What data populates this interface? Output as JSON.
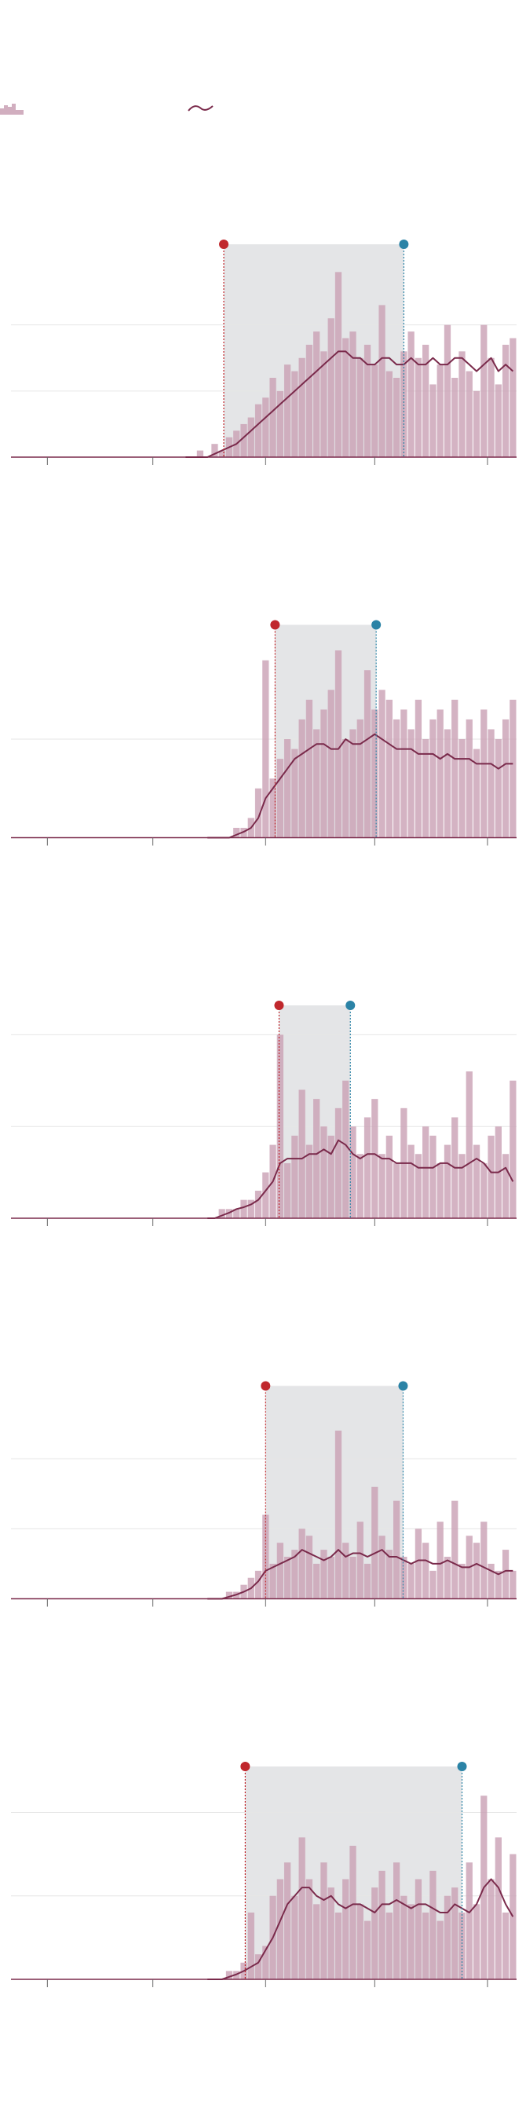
{
  "chart_data": [
    {
      "type": "combo",
      "xlim": [
        0,
        139
      ],
      "xticks": [
        10,
        39,
        70,
        100,
        131
      ],
      "ylim": [
        0,
        32.2
      ],
      "yticks": [
        10,
        20
      ],
      "grid": true,
      "highlight": {
        "start": 58.5,
        "end": 108,
        "start_color": "#c0282d",
        "end_color": "#2b83a6",
        "fill": "#e4e5e7"
      },
      "x": [
        48,
        50,
        52,
        54,
        56,
        58,
        60,
        62,
        64,
        66,
        68,
        70,
        72,
        74,
        76,
        78,
        80,
        82,
        84,
        86,
        88,
        90,
        92,
        94,
        96,
        98,
        100,
        102,
        104,
        106,
        108,
        110,
        112,
        114,
        116,
        118,
        120,
        122,
        124,
        126,
        128,
        130,
        132,
        134,
        136,
        138
      ],
      "series": [
        {
          "type": "bar",
          "color": "#c9a0b4",
          "values": [
            0,
            0,
            1,
            0,
            2,
            1,
            3,
            4,
            5,
            6,
            8,
            9,
            12,
            10,
            14,
            13,
            15,
            17,
            19,
            16,
            21,
            28,
            18,
            19,
            15,
            17,
            14,
            23,
            13,
            12,
            16,
            19,
            15,
            17,
            11,
            14,
            20,
            12,
            16,
            13,
            10,
            20,
            15,
            11,
            17,
            18
          ]
        },
        {
          "type": "line",
          "color": "#7a2a4b",
          "values": [
            0,
            0,
            0,
            0,
            0.5,
            1,
            1.5,
            2,
            3,
            4,
            5,
            6,
            7,
            8,
            9,
            10,
            11,
            12,
            13,
            14,
            15,
            16,
            16,
            15,
            15,
            14,
            14,
            15,
            15,
            14,
            14,
            15,
            14,
            14,
            15,
            14,
            14,
            15,
            15,
            14,
            13,
            14,
            15,
            13,
            14,
            13
          ]
        }
      ]
    },
    {
      "type": "combo",
      "xlim": [
        0,
        139
      ],
      "xticks": [
        10,
        39,
        70,
        100,
        131
      ],
      "ylim": [
        0,
        21.6
      ],
      "yticks": [
        10
      ],
      "grid": true,
      "highlight": {
        "start": 72.6,
        "end": 100.4,
        "start_color": "#c0282d",
        "end_color": "#2b83a6",
        "fill": "#e4e5e7"
      },
      "x": [
        54,
        56,
        58,
        60,
        62,
        64,
        66,
        68,
        70,
        72,
        74,
        76,
        78,
        80,
        82,
        84,
        86,
        88,
        90,
        92,
        94,
        96,
        98,
        100,
        102,
        104,
        106,
        108,
        110,
        112,
        114,
        116,
        118,
        120,
        122,
        124,
        126,
        128,
        130,
        132,
        134,
        136,
        138
      ],
      "series": [
        {
          "type": "bar",
          "color": "#c9a0b4",
          "values": [
            0,
            0,
            0,
            0,
            1,
            1,
            2,
            5,
            18,
            6,
            8,
            10,
            9,
            12,
            14,
            11,
            13,
            15,
            19,
            10,
            11,
            12,
            17,
            13,
            15,
            14,
            12,
            13,
            11,
            14,
            10,
            12,
            13,
            11,
            14,
            10,
            12,
            9,
            13,
            11,
            10,
            12,
            14
          ]
        },
        {
          "type": "line",
          "color": "#7a2a4b",
          "values": [
            0,
            0,
            0,
            0,
            0.3,
            0.6,
            1,
            2,
            4,
            5,
            6,
            7,
            8,
            8.5,
            9,
            9.5,
            9.5,
            9,
            9,
            10,
            9.5,
            9.5,
            10,
            10.5,
            10,
            9.5,
            9,
            9,
            9,
            8.5,
            8.5,
            8.5,
            8,
            8.5,
            8,
            8,
            8,
            7.5,
            7.5,
            7.5,
            7,
            7.5,
            7.5
          ]
        }
      ]
    },
    {
      "type": "combo",
      "xlim": [
        0,
        139
      ],
      "xticks": [
        10,
        39,
        70,
        100,
        131
      ],
      "ylim": [
        0,
        23.2
      ],
      "yticks": [
        10,
        20
      ],
      "grid": true,
      "highlight": {
        "start": 73.7,
        "end": 93.3,
        "start_color": "#c0282d",
        "end_color": "#2b83a6",
        "fill": "#e4e5e7"
      },
      "x": [
        54,
        56,
        58,
        60,
        62,
        64,
        66,
        68,
        70,
        72,
        74,
        76,
        78,
        80,
        82,
        84,
        86,
        88,
        90,
        92,
        94,
        96,
        98,
        100,
        102,
        104,
        106,
        108,
        110,
        112,
        114,
        116,
        118,
        120,
        122,
        124,
        126,
        128,
        130,
        132,
        134,
        136,
        138
      ],
      "series": [
        {
          "type": "bar",
          "color": "#c9a0b4",
          "values": [
            0,
            0,
            1,
            1,
            1,
            2,
            2,
            3,
            5,
            8,
            20,
            6,
            9,
            14,
            8,
            13,
            10,
            9,
            12,
            15,
            10,
            7,
            11,
            13,
            7,
            9,
            6,
            12,
            8,
            7,
            10,
            9,
            6,
            8,
            11,
            7,
            16,
            8,
            6,
            9,
            10,
            7,
            15
          ]
        },
        {
          "type": "line",
          "color": "#7a2a4b",
          "values": [
            0,
            0,
            0.3,
            0.6,
            1,
            1.2,
            1.5,
            2,
            3,
            4,
            6,
            6.5,
            6.5,
            6.5,
            7,
            7,
            7.5,
            7,
            8.5,
            8,
            7,
            6.5,
            7,
            7,
            6.5,
            6.5,
            6,
            6,
            6,
            5.5,
            5.5,
            5.5,
            6,
            6,
            5.5,
            5.5,
            6,
            6.5,
            6,
            5,
            5,
            5.5,
            4
          ]
        }
      ]
    },
    {
      "type": "combo",
      "xlim": [
        0,
        139
      ],
      "xticks": [
        10,
        39,
        70,
        100,
        131
      ],
      "ylim": [
        0,
        30.4
      ],
      "yticks": [
        10,
        20
      ],
      "grid": true,
      "highlight": {
        "start": 70,
        "end": 107.8,
        "start_color": "#c0282d",
        "end_color": "#2b83a6",
        "fill": "#e4e5e7"
      },
      "x": [
        54,
        56,
        58,
        60,
        62,
        64,
        66,
        68,
        70,
        72,
        74,
        76,
        78,
        80,
        82,
        84,
        86,
        88,
        90,
        92,
        94,
        96,
        98,
        100,
        102,
        104,
        106,
        108,
        110,
        112,
        114,
        116,
        118,
        120,
        122,
        124,
        126,
        128,
        130,
        132,
        134,
        136,
        138
      ],
      "series": [
        {
          "type": "bar",
          "color": "#c9a0b4",
          "values": [
            0,
            0,
            0,
            1,
            1,
            2,
            3,
            4,
            12,
            5,
            8,
            6,
            7,
            10,
            9,
            5,
            7,
            6,
            24,
            8,
            6,
            11,
            5,
            16,
            9,
            7,
            14,
            6,
            5,
            10,
            8,
            4,
            11,
            6,
            14,
            5,
            9,
            8,
            11,
            5,
            4,
            7,
            4
          ]
        },
        {
          "type": "line",
          "color": "#7a2a4b",
          "values": [
            0,
            0,
            0,
            0.3,
            0.6,
            1,
            1.5,
            2.5,
            4,
            4.5,
            5,
            5.5,
            6,
            7,
            6.5,
            6,
            5.5,
            6,
            7,
            6,
            6.5,
            6.5,
            6,
            6.5,
            7,
            6,
            6,
            5.5,
            5,
            5.5,
            5.5,
            5,
            5,
            5.5,
            5,
            4.5,
            4.5,
            5,
            4.5,
            4,
            3.5,
            4,
            4
          ]
        }
      ]
    },
    {
      "type": "combo",
      "xlim": [
        0,
        139
      ],
      "xticks": [
        10,
        39,
        70,
        100,
        131
      ],
      "ylim": [
        0,
        25.5
      ],
      "yticks": [
        10,
        20
      ],
      "grid": true,
      "highlight": {
        "start": 64.4,
        "end": 124,
        "start_color": "#c0282d",
        "end_color": "#2b83a6",
        "fill": "#e4e5e7"
      },
      "x": [
        54,
        56,
        58,
        60,
        62,
        64,
        66,
        68,
        70,
        72,
        74,
        76,
        78,
        80,
        82,
        84,
        86,
        88,
        90,
        92,
        94,
        96,
        98,
        100,
        102,
        104,
        106,
        108,
        110,
        112,
        114,
        116,
        118,
        120,
        122,
        124,
        126,
        128,
        130,
        132,
        134,
        136,
        138
      ],
      "series": [
        {
          "type": "bar",
          "color": "#c9a0b4",
          "values": [
            0,
            0,
            0,
            1,
            1,
            2,
            8,
            3,
            4,
            10,
            12,
            14,
            10,
            17,
            12,
            9,
            14,
            11,
            8,
            12,
            16,
            9,
            7,
            11,
            13,
            8,
            14,
            10,
            9,
            12,
            8,
            13,
            7,
            10,
            11,
            8,
            14,
            9,
            22,
            12,
            17,
            8,
            15
          ]
        },
        {
          "type": "line",
          "color": "#7a2a4b",
          "values": [
            0,
            0,
            0,
            0.3,
            0.6,
            1,
            1.5,
            2,
            3.5,
            5,
            7,
            9,
            10,
            11,
            11,
            10,
            9.5,
            10,
            9,
            8.5,
            9,
            9,
            8.5,
            8,
            9,
            9,
            9.5,
            9,
            8.5,
            9,
            9,
            8.5,
            8,
            8,
            9,
            8.5,
            8,
            9,
            11,
            12,
            11,
            9,
            7.5
          ]
        }
      ]
    }
  ]
}
